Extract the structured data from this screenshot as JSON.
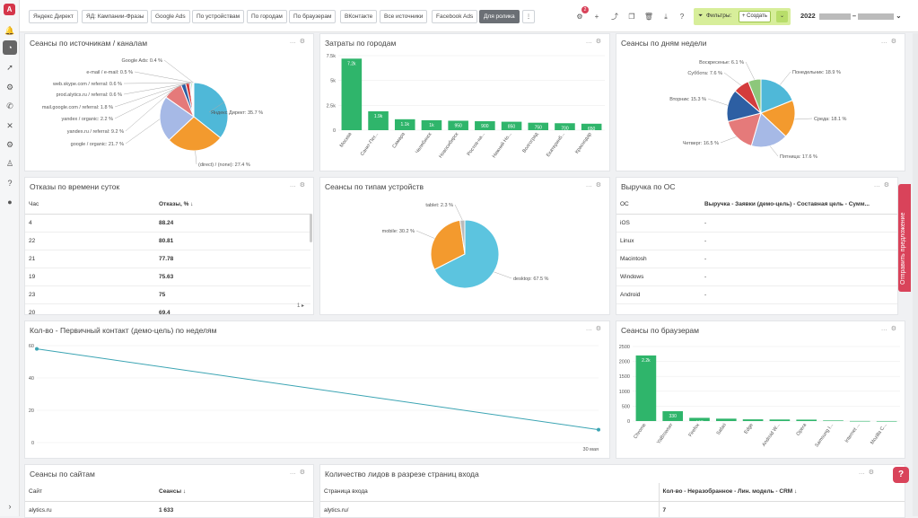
{
  "topbar": {
    "chips": [
      "Яндекс Директ",
      "ЯД: Кампании-Фразы",
      "Google Ads",
      "По устройствам",
      "По городам",
      "По браузерам",
      "ВКонтакте",
      "Все источники",
      "Facebook Ads",
      "Для ролика"
    ],
    "active_chip": "Для ролика",
    "notif_count": "2",
    "filters_label": "Фильтры:",
    "create_label": "Создать",
    "date_prefix": "2022"
  },
  "panels": {
    "sources": {
      "title": "Сеансы по источникам / каналам"
    },
    "costs": {
      "title": "Затраты по городам"
    },
    "weekdays": {
      "title": "Сеансы по дням недели"
    },
    "bounce": {
      "title": "Отказы по времени суток",
      "col1": "Час",
      "col2": "Отказы, % ↓",
      "rows": [
        [
          "4",
          "88.24"
        ],
        [
          "22",
          "80.81"
        ],
        [
          "21",
          "77.78"
        ],
        [
          "19",
          "75.63"
        ],
        [
          "23",
          "75"
        ],
        [
          "20",
          "69.4"
        ]
      ],
      "page": "1"
    },
    "devices": {
      "title": "Сеансы по типам устройств"
    },
    "os": {
      "title": "Выручка по ОС",
      "col1": "ОС",
      "col2": "Выручка - Заявки (демо-цель) - Составная цель - Сумм...",
      "rows": [
        [
          "iOS",
          "-"
        ],
        [
          "Linux",
          "-"
        ],
        [
          "Macintosh",
          "-"
        ],
        [
          "Windows",
          "-"
        ],
        [
          "Android",
          "-"
        ]
      ]
    },
    "weekly": {
      "title": "Кол-во - Первичный контакт (демо-цель) по неделям"
    },
    "browsers": {
      "title": "Сеансы по браузерам"
    },
    "sites": {
      "title": "Сеансы по сайтам",
      "col1": "Сайт",
      "col2": "Сеансы ↓",
      "rows": [
        [
          "alytics.ru",
          "1 633"
        ]
      ]
    },
    "leads": {
      "title": "Количество лидов в разрезе страниц входа",
      "col1": "Страница входа",
      "col2": "Кол-во - Неразобранное - Лин. модель - CRM ↓",
      "rows": [
        [
          "alytics.ru/",
          "7"
        ]
      ]
    }
  },
  "feedback_label": "Отправить предложение",
  "help_label": "?",
  "chart_data": [
    {
      "type": "pie",
      "title": "Сеансы по источникам / каналам",
      "slices": [
        {
          "label": "Яндекс Директ: 35.7 %",
          "value": 35.7,
          "color": "#4fb8d8"
        },
        {
          "label": "(direct) / (none): 27.4 %",
          "value": 27.4,
          "color": "#f39a2e"
        },
        {
          "label": "google / organic: 21.7 %",
          "value": 21.7,
          "color": "#a6b9e6"
        },
        {
          "label": "yandex.ru / referral: 9.2 %",
          "value": 9.2,
          "color": "#e57a7a"
        },
        {
          "label": "yandex / organic: 2.2 %",
          "value": 2.2,
          "color": "#2d5fa3"
        },
        {
          "label": "mail.google.com / referral: 1.8 %",
          "value": 1.8,
          "color": "#d33c3c"
        },
        {
          "label": "prod.alytics.ru / referral: 0.6 %",
          "value": 0.6,
          "color": "#7d58b5"
        },
        {
          "label": "web.skype.com / referral: 0.6 %",
          "value": 0.6,
          "color": "#5dc25d"
        },
        {
          "label": "e-mail / e-mail: 0.5 %",
          "value": 0.5,
          "color": "#58c8e0"
        },
        {
          "label": "Google Ads: 0.4 %",
          "value": 0.4,
          "color": "#f2c94c"
        }
      ]
    },
    {
      "type": "bar",
      "title": "Затраты по городам",
      "categories": [
        "Москва",
        "Санкт-Пет...",
        "Самара",
        "Челябинск",
        "Новосибирск",
        "Ростов-на...",
        "Нижний Но...",
        "Волгоград",
        "Екатеринб...",
        "Краснодар"
      ],
      "values": [
        7200,
        1900,
        1100,
        1000,
        950,
        900,
        850,
        750,
        700,
        650
      ],
      "value_labels": [
        "7.2k",
        "1.9k",
        "1.1k",
        "1k",
        "950",
        "900",
        "850",
        "750",
        "700",
        "650"
      ],
      "yticks": [
        "7.5k",
        "5k",
        "2.5k",
        "0"
      ],
      "ylim": [
        0,
        7500
      ],
      "color": "#2fb56b"
    },
    {
      "type": "pie",
      "title": "Сеансы по дням недели",
      "slices": [
        {
          "label": "Понедельник: 18.9 %",
          "value": 18.9,
          "color": "#4fb8d8"
        },
        {
          "label": "Среда: 18.1 %",
          "value": 18.1,
          "color": "#f39a2e"
        },
        {
          "label": "Пятница: 17.6 %",
          "value": 17.6,
          "color": "#a6b9e6"
        },
        {
          "label": "Четверг: 16.5 %",
          "value": 16.5,
          "color": "#e57a7a"
        },
        {
          "label": "Вторник: 15.3 %",
          "value": 15.3,
          "color": "#2d5fa3"
        },
        {
          "label": "Суббота: 7.6 %",
          "value": 7.6,
          "color": "#d33c3c"
        },
        {
          "label": "Воскресенье: 6.1 %",
          "value": 6.1,
          "color": "#8dc77b"
        }
      ]
    },
    {
      "type": "pie",
      "title": "Сеансы по типам устройств",
      "slices": [
        {
          "label": "desktop: 67.5 %",
          "value": 67.5,
          "color": "#5cc4df"
        },
        {
          "label": "mobile: 30.2 %",
          "value": 30.2,
          "color": "#f39a2e"
        },
        {
          "label": "tablet: 2.3 %",
          "value": 2.3,
          "color": "#bbbbbb"
        }
      ]
    },
    {
      "type": "line",
      "title": "Кол-во - Первичный контакт (демо-цель) по неделям",
      "x": [
        "",
        "30 мая"
      ],
      "values": [
        58,
        8
      ],
      "yticks": [
        "60",
        "40",
        "20",
        "0"
      ],
      "ylim": [
        0,
        60
      ],
      "color": "#3ba4b3"
    },
    {
      "type": "bar",
      "title": "Сеансы по браузерам",
      "categories": [
        "Chrome",
        "YaBrowser",
        "Firefox",
        "Safari",
        "Edge",
        "Android W...",
        "Opera",
        "Samsung I...",
        "Internet ...",
        "Mozilla C..."
      ],
      "values": [
        2200,
        330,
        107,
        80,
        57,
        52,
        47,
        19,
        3,
        1
      ],
      "value_labels": [
        "2.2k",
        "330",
        "107",
        "80",
        "57",
        "52",
        "47",
        "19",
        "3",
        "1"
      ],
      "yticks": [
        "2500",
        "2000",
        "1500",
        "1000",
        "500",
        "0"
      ],
      "ylim": [
        0,
        2500
      ],
      "color": "#2fb56b"
    }
  ]
}
